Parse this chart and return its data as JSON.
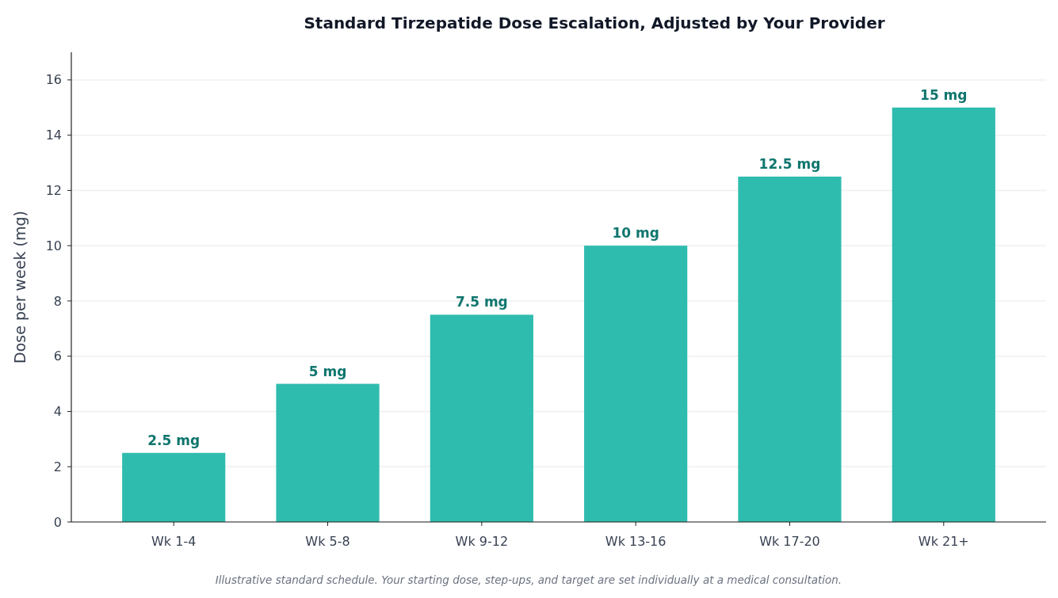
{
  "chart_data": {
    "type": "bar",
    "title": "Standard Tirzepatide Dose Escalation, Adjusted by Your Provider",
    "ylabel": "Dose per week (mg)",
    "categories": [
      "Wk 1-4",
      "Wk 5-8",
      "Wk 9-12",
      "Wk 13-16",
      "Wk 17-20",
      "Wk 21+"
    ],
    "values": [
      2.5,
      5,
      7.5,
      10,
      12.5,
      15
    ],
    "value_labels": [
      "2.5 mg",
      "5 mg",
      "7.5 mg",
      "10 mg",
      "12.5 mg",
      "15 mg"
    ],
    "color": "#2ebcae",
    "ylim": [
      0,
      17
    ],
    "yticks": [
      0,
      2,
      4,
      6,
      8,
      10,
      12,
      14,
      16
    ],
    "grid": "y",
    "annotations": [
      "Illustrative standard schedule. Your starting dose, step-ups, and target are set individually at a medical consultation."
    ]
  }
}
